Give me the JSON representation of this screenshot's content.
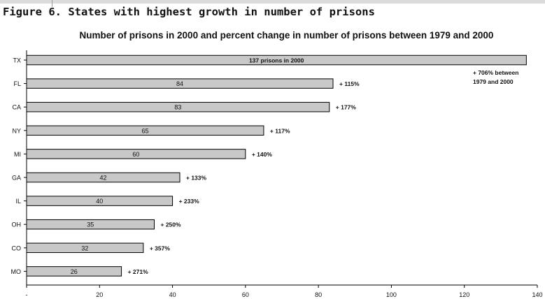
{
  "figure_title": "Figure 6. States with highest growth in number of prisons",
  "chart_data": {
    "type": "bar",
    "orientation": "horizontal",
    "title": "Number of prisons in 2000 and percent change in number of prisons between 1979 and 2000",
    "xlabel": "",
    "ylabel": "",
    "xlim": [
      0,
      140
    ],
    "x_ticks": [
      "20",
      "40",
      "60",
      "80",
      "100",
      "120",
      "140"
    ],
    "categories": [
      "TX",
      "FL",
      "CA",
      "NY",
      "MI",
      "GA",
      "IL",
      "OH",
      "CO",
      "MO"
    ],
    "values": [
      137,
      84,
      83,
      65,
      60,
      42,
      40,
      35,
      32,
      26
    ],
    "bar_labels": [
      "137 prisons in 2000",
      "84",
      "83",
      "65",
      "60",
      "42",
      "40",
      "35",
      "32",
      "26"
    ],
    "pct_change_labels": [
      "+ 706% between 1979 and 2000",
      "+ 115%",
      "+ 177%",
      "+ 117%",
      "+ 140%",
      "+ 133%",
      "+ 233%",
      "+ 250%",
      "+ 357%",
      "+ 271%"
    ],
    "grid": false,
    "bar_color": "#c8c8c8",
    "bar_stroke": "#000000"
  }
}
